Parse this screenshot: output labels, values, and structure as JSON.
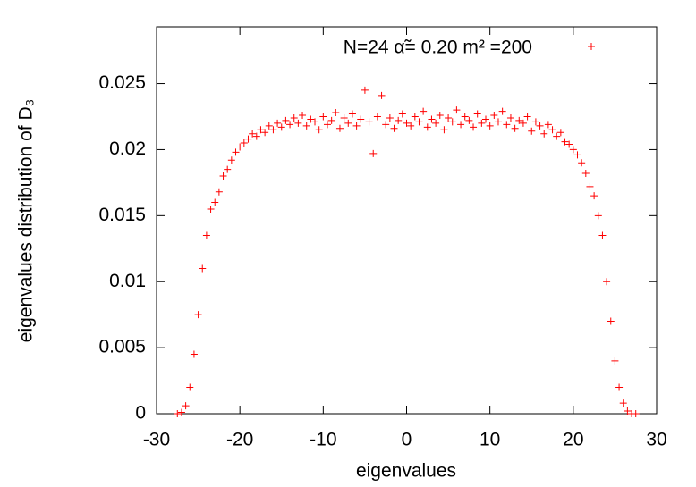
{
  "chart_data": {
    "type": "scatter",
    "xlabel": "eigenvalues",
    "ylabel": "eigenvalues distribution of  D₃",
    "xlim": [
      -30,
      30
    ],
    "ylim": [
      0,
      0.0293
    ],
    "xticks": [
      -30,
      -20,
      -10,
      0,
      10,
      20,
      30
    ],
    "yticks": [
      0,
      0.005,
      0.01,
      0.015,
      0.02,
      0.025
    ],
    "legend": "top-right",
    "series": [
      {
        "name": "N=24  α̃= 0.20  m² =200",
        "color": "#ff0000",
        "x": [
          -27.5,
          -27,
          -26.5,
          -26,
          -25.5,
          -25,
          -24.5,
          -24,
          -23.5,
          -23,
          -22.5,
          -22,
          -21.5,
          -21,
          -20.5,
          -20,
          -19.5,
          -19,
          -18.5,
          -18,
          -17.5,
          -17,
          -16.5,
          -16,
          -15.5,
          -15,
          -14.5,
          -14,
          -13.5,
          -13,
          -12.5,
          -12,
          -11.5,
          -11,
          -10.5,
          -10,
          -9.5,
          -9,
          -8.5,
          -8,
          -7.5,
          -7,
          -6.5,
          -6,
          -5.5,
          -5,
          -4.5,
          -4,
          -3.5,
          -3,
          -2.5,
          -2,
          -1.5,
          -1,
          -0.5,
          0,
          0.5,
          1,
          1.5,
          2,
          2.5,
          3,
          3.5,
          4,
          4.5,
          5,
          5.5,
          6,
          6.5,
          7,
          7.5,
          8,
          8.5,
          9,
          9.5,
          10,
          10.5,
          11,
          11.5,
          12,
          12.5,
          13,
          13.5,
          14,
          14.5,
          15,
          15.5,
          16,
          16.5,
          17,
          17.5,
          18,
          18.5,
          19,
          19.5,
          20,
          20.5,
          21,
          21.5,
          22,
          22.5,
          23,
          23.5,
          24,
          24.5,
          25,
          25.5,
          26,
          26.5,
          27,
          27.5
        ],
        "values": [
          0,
          0.0001,
          0.0006,
          0.002,
          0.0045,
          0.0075,
          0.011,
          0.0135,
          0.0155,
          0.016,
          0.0168,
          0.018,
          0.0185,
          0.0192,
          0.0198,
          0.0202,
          0.0205,
          0.0208,
          0.0212,
          0.021,
          0.0215,
          0.0213,
          0.0218,
          0.0215,
          0.022,
          0.0217,
          0.0222,
          0.0219,
          0.0224,
          0.022,
          0.0226,
          0.0218,
          0.0223,
          0.0221,
          0.0215,
          0.0225,
          0.0219,
          0.0222,
          0.0228,
          0.0216,
          0.0224,
          0.022,
          0.0227,
          0.0218,
          0.0223,
          0.0245,
          0.0221,
          0.0197,
          0.0225,
          0.0241,
          0.0219,
          0.0224,
          0.0216,
          0.0222,
          0.0227,
          0.022,
          0.0218,
          0.0225,
          0.0221,
          0.0229,
          0.0217,
          0.0223,
          0.022,
          0.0226,
          0.0215,
          0.0224,
          0.0221,
          0.023,
          0.0219,
          0.0225,
          0.0222,
          0.0217,
          0.0227,
          0.022,
          0.0223,
          0.0218,
          0.0226,
          0.0221,
          0.0229,
          0.0219,
          0.0224,
          0.0216,
          0.0222,
          0.022,
          0.0225,
          0.0214,
          0.0221,
          0.0218,
          0.0212,
          0.0219,
          0.0215,
          0.021,
          0.0213,
          0.0206,
          0.0204,
          0.02,
          0.0196,
          0.019,
          0.0182,
          0.0172,
          0.0165,
          0.015,
          0.0135,
          0.01,
          0.007,
          0.004,
          0.002,
          0.0008,
          0.0002,
          0,
          0
        ]
      }
    ]
  }
}
